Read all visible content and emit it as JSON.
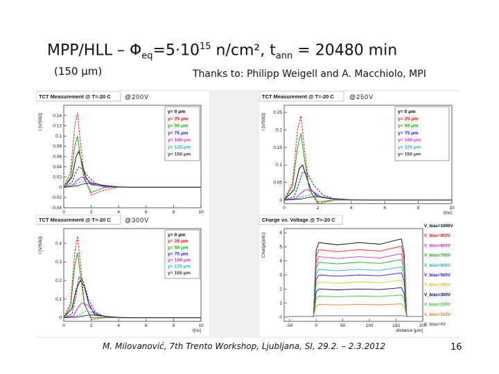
{
  "slide": {
    "title_main": "MPP/HLL – Φ",
    "title_sub": "eq",
    "title_mid": "=5·10",
    "title_sup": "15",
    "title_end": " n/cm², t",
    "title_sub2": "ann",
    "title_tail": " = 20480 min",
    "subtitle": "(150 μm)",
    "thanks": "Thanks to: Philipp Weigell and A. Macchiolo, MPI",
    "footer": "M. Milovanović, 7th Trento Workshop, Ljubljana, SI, 29.2. – 2.3.2012",
    "page_number": "16"
  },
  "chart_data": [
    {
      "type": "line",
      "title": "TCT Measurement @ T=-20 C",
      "annotation": "@200V",
      "xlabel": "t[ns]",
      "ylabel": "I [V/50Ω]",
      "xlim": [
        0,
        10
      ],
      "ylim": [
        -0.04,
        0.16
      ],
      "xticks": [
        0,
        2,
        4,
        6,
        8,
        10
      ],
      "yticks": [
        -0.04,
        -0.02,
        0,
        0.02,
        0.04,
        0.06,
        0.08,
        0.1,
        0.12,
        0.14
      ],
      "legend_position": "top-right",
      "series": [
        {
          "name": "y= 0  μm",
          "color": "#000000",
          "x": [
            0,
            0.6,
            0.9,
            1.1,
            1.3,
            1.6,
            2,
            3,
            4,
            5,
            10
          ],
          "y": [
            0,
            0.02,
            0.06,
            0.07,
            0.05,
            0.02,
            0.005,
            0.002,
            0,
            0,
            0
          ]
        },
        {
          "name": "y= 25  μm",
          "color": "#e02020",
          "x": [
            0,
            0.5,
            0.8,
            1.0,
            1.2,
            1.5,
            2,
            3,
            4,
            5,
            10
          ],
          "y": [
            0,
            0.03,
            0.12,
            0.145,
            0.09,
            0.02,
            -0.015,
            -0.005,
            0,
            0,
            0
          ]
        },
        {
          "name": "y= 50  μm",
          "color": "#20a020",
          "x": [
            0,
            0.5,
            0.8,
            1.0,
            1.2,
            1.5,
            2,
            3,
            4,
            5,
            10
          ],
          "y": [
            0,
            0.02,
            0.08,
            0.1,
            0.06,
            0.015,
            -0.01,
            0,
            0,
            0,
            0
          ]
        },
        {
          "name": "y= 75  μm",
          "color": "#2020c0",
          "x": [
            0,
            0.6,
            0.9,
            1.1,
            1.4,
            1.8,
            2.3,
            3,
            4,
            5,
            10
          ],
          "y": [
            0,
            0.01,
            0.03,
            0.04,
            0.035,
            0.02,
            0.008,
            0.002,
            0,
            0,
            0
          ]
        },
        {
          "name": "y= 100  μm",
          "color": "#d030d0",
          "x": [
            0,
            0.7,
            1.0,
            1.3,
            1.7,
            2.2,
            3,
            4,
            5,
            10
          ],
          "y": [
            0,
            0.005,
            0.015,
            0.02,
            0.015,
            0.005,
            0.001,
            0,
            0,
            0
          ]
        },
        {
          "name": "y= 125  μm",
          "color": "#20b0c0",
          "x": [
            0,
            0.8,
            1.2,
            1.6,
            2.2,
            3,
            4,
            5,
            10
          ],
          "y": [
            0,
            0.005,
            0.01,
            0.012,
            0.008,
            0.003,
            0,
            0,
            0
          ]
        },
        {
          "name": "y= 150  μm",
          "color": "#303030",
          "x": [
            0,
            1.0,
            1.5,
            2.0,
            2.8,
            4,
            5,
            10
          ],
          "y": [
            0,
            0.003,
            0.007,
            0.008,
            0.004,
            0.001,
            0,
            0
          ]
        }
      ]
    },
    {
      "type": "line",
      "title": "TCT Measurement @ T=-20 C",
      "annotation": "@250V",
      "xlabel": "t[ns]",
      "ylabel": "I [V/50Ω]",
      "xlim": [
        0,
        10
      ],
      "ylim": [
        -0.01,
        0.27
      ],
      "xticks": [
        0,
        2,
        4,
        6,
        8,
        10
      ],
      "yticks": [
        0,
        0.05,
        0.1,
        0.15,
        0.2,
        0.25
      ],
      "legend_position": "top-right",
      "series": [
        {
          "name": "y= 0  μm",
          "color": "#000000",
          "x": [
            0,
            0.6,
            0.9,
            1.1,
            1.3,
            1.6,
            2,
            3,
            4,
            5,
            10
          ],
          "y": [
            0,
            0.03,
            0.09,
            0.1,
            0.07,
            0.03,
            0.01,
            0.002,
            0,
            0,
            0
          ]
        },
        {
          "name": "y= 25  μm",
          "color": "#e02020",
          "x": [
            0,
            0.5,
            0.8,
            1.0,
            1.2,
            1.5,
            2,
            3,
            4,
            5,
            10
          ],
          "y": [
            0,
            0.05,
            0.2,
            0.24,
            0.15,
            0.03,
            -0.01,
            0,
            0,
            0,
            0
          ]
        },
        {
          "name": "y= 50  μm",
          "color": "#20a020",
          "x": [
            0,
            0.5,
            0.8,
            1.0,
            1.2,
            1.5,
            2,
            3,
            4,
            5,
            10
          ],
          "y": [
            0,
            0.04,
            0.15,
            0.19,
            0.12,
            0.03,
            -0.005,
            0,
            0,
            0,
            0
          ]
        },
        {
          "name": "y= 75  μm",
          "color": "#2020c0",
          "x": [
            0,
            0.6,
            0.9,
            1.1,
            1.4,
            1.8,
            2.3,
            3,
            4,
            5,
            10
          ],
          "y": [
            0,
            0.01,
            0.05,
            0.08,
            0.075,
            0.04,
            0.015,
            0.003,
            0,
            0,
            0
          ]
        },
        {
          "name": "y= 100  μm",
          "color": "#d030d0",
          "x": [
            0,
            0.7,
            1.0,
            1.3,
            1.7,
            2.2,
            3,
            4,
            5,
            10
          ],
          "y": [
            0,
            0.005,
            0.02,
            0.03,
            0.025,
            0.01,
            0.002,
            0,
            0,
            0
          ]
        },
        {
          "name": "y= 125  μm",
          "color": "#20b0c0",
          "x": [
            0,
            0.8,
            1.2,
            1.6,
            2.2,
            3,
            4,
            5,
            10
          ],
          "y": [
            0,
            0.004,
            0.012,
            0.015,
            0.01,
            0.003,
            0,
            0,
            0
          ]
        },
        {
          "name": "y= 150  μm",
          "color": "#303030",
          "x": [
            0,
            1.0,
            1.5,
            2.0,
            2.8,
            4,
            5,
            10
          ],
          "y": [
            0,
            0.003,
            0.008,
            0.01,
            0.005,
            0.001,
            0,
            0
          ]
        }
      ]
    },
    {
      "type": "line",
      "title": "TCT Measurement @ T=-20 C",
      "annotation": "@300V",
      "xlabel": "t[ns]",
      "ylabel": "I [V/50Ω]",
      "xlim": [
        0,
        10
      ],
      "ylim": [
        -0.02,
        0.48
      ],
      "xticks": [
        0,
        2,
        4,
        6,
        8,
        10
      ],
      "yticks": [
        0,
        0.1,
        0.2,
        0.3,
        0.4
      ],
      "legend_position": "top-right",
      "series": [
        {
          "name": "y= 0  μm",
          "color": "#000000",
          "x": [
            0,
            0.6,
            0.9,
            1.2,
            1.5,
            1.8,
            2.2,
            3,
            4,
            5,
            10
          ],
          "y": [
            0,
            0.05,
            0.15,
            0.2,
            0.17,
            0.08,
            0.02,
            0.005,
            0,
            0,
            0
          ]
        },
        {
          "name": "y= 25  μm",
          "color": "#e02020",
          "x": [
            0,
            0.5,
            0.8,
            1.0,
            1.2,
            1.5,
            2,
            3,
            4,
            5,
            10
          ],
          "y": [
            0,
            0.08,
            0.35,
            0.44,
            0.3,
            0.08,
            -0.01,
            0,
            0,
            0,
            0
          ]
        },
        {
          "name": "y= 50  μm",
          "color": "#20a020",
          "x": [
            0,
            0.5,
            0.8,
            1.0,
            1.2,
            1.5,
            2,
            3,
            4,
            5,
            10
          ],
          "y": [
            0,
            0.06,
            0.28,
            0.35,
            0.24,
            0.07,
            0,
            0,
            0,
            0,
            0
          ]
        },
        {
          "name": "y= 75  μm",
          "color": "#2020c0",
          "x": [
            0,
            0.6,
            0.9,
            1.1,
            1.4,
            1.8,
            2.3,
            3,
            4,
            5,
            10
          ],
          "y": [
            0,
            0.02,
            0.12,
            0.22,
            0.2,
            0.1,
            0.03,
            0.005,
            0,
            0,
            0
          ]
        },
        {
          "name": "y= 100  μm",
          "color": "#d030d0",
          "x": [
            0,
            0.7,
            1.0,
            1.3,
            1.7,
            2.2,
            3,
            4,
            5,
            10
          ],
          "y": [
            0,
            0.01,
            0.05,
            0.08,
            0.07,
            0.03,
            0.005,
            0,
            0,
            0
          ]
        },
        {
          "name": "y= 125  μm",
          "color": "#20b0c0",
          "x": [
            0,
            0.8,
            1.2,
            1.6,
            2.2,
            3,
            4,
            5,
            10
          ],
          "y": [
            0,
            0.005,
            0.02,
            0.035,
            0.025,
            0.008,
            0,
            0,
            0
          ]
        },
        {
          "name": "y= 150  μm",
          "color": "#303030",
          "x": [
            0,
            1.0,
            1.5,
            2.0,
            2.8,
            4,
            5,
            10
          ],
          "y": [
            0,
            0.004,
            0.01,
            0.015,
            0.008,
            0.002,
            0,
            0
          ]
        }
      ]
    },
    {
      "type": "line",
      "title": "Charge vs. Voltage @ T=-20 C",
      "xlabel": "distance [μm]",
      "ylabel": "Charge[arb.]",
      "xlim": [
        -60,
        200
      ],
      "ylim": [
        -0.3,
        6.3
      ],
      "xticks": [
        -50,
        0,
        50,
        100,
        150,
        200
      ],
      "yticks": [
        0,
        1,
        2,
        3,
        4,
        5,
        6
      ],
      "legend_position": "right",
      "series": [
        {
          "name": "V_bias=1000V",
          "color": "#000000",
          "plateau": 5.3
        },
        {
          "name": "V_bias=900V",
          "color": "#e02020",
          "plateau": 4.8
        },
        {
          "name": "V_bias=800V",
          "color": "#d030d0",
          "plateau": 4.3
        },
        {
          "name": "V_bias=700V",
          "color": "#20a020",
          "plateau": 3.9
        },
        {
          "name": "V_bias=600V",
          "color": "#20b0c0",
          "plateau": 3.4
        },
        {
          "name": "V_bias=500V",
          "color": "#2020c0",
          "plateau": 3.0
        },
        {
          "name": "V_bias=400V",
          "color": "#e0c020",
          "plateau": 2.5
        },
        {
          "name": "V_bias=300V",
          "color": "#000060",
          "plateau": 2.0
        },
        {
          "name": "V_bias=200V",
          "color": "#40c040",
          "plateau": 1.5
        },
        {
          "name": "V_bias=100V",
          "color": "#e08020",
          "plateau": 0.9
        },
        {
          "name": "V_bias=0V",
          "color": "#606060",
          "plateau": 0.1
        }
      ]
    }
  ]
}
